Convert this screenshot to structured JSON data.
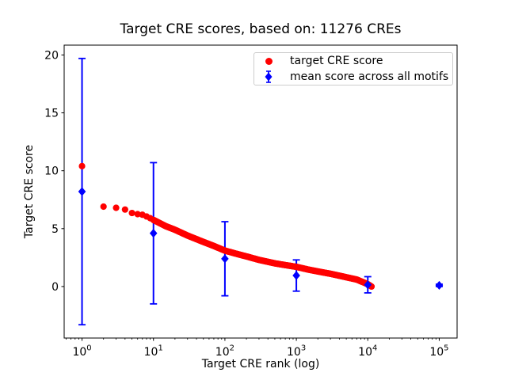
{
  "figure": {
    "background": "#ffffff"
  },
  "chart_data": {
    "type": "scatter",
    "title": "Target CRE scores, based on: 11276 CREs",
    "xlabel": "Target CRE rank (log)",
    "ylabel": "Target CRE score",
    "x_scale": "log",
    "xlim_log10": [
      -0.25,
      5.25
    ],
    "ylim": [
      -4.45,
      20.85
    ],
    "x_major_tick_exponents": [
      0,
      1,
      2,
      3,
      4,
      5
    ],
    "x_tick_base": "10",
    "y_ticks": [
      0,
      5,
      10,
      15,
      20
    ],
    "n_cres": 11276,
    "grid": false,
    "legend_position": "upper right",
    "series": [
      {
        "name": "target CRE score",
        "color": "#ff0000",
        "marker": "circle",
        "n_points": 11276,
        "note": "monotonically decreasing score vs rank; dense band sampled at anchor ranks below",
        "points": [
          [
            1,
            10.4
          ],
          [
            2,
            6.9
          ],
          [
            3,
            6.8
          ],
          [
            4,
            6.65
          ],
          [
            5,
            6.35
          ],
          [
            6,
            6.25
          ],
          [
            7,
            6.2
          ],
          [
            8,
            6.05
          ],
          [
            9,
            5.9
          ],
          [
            10,
            5.75
          ],
          [
            15,
            5.2
          ],
          [
            20,
            4.9
          ],
          [
            30,
            4.4
          ],
          [
            50,
            3.85
          ],
          [
            70,
            3.5
          ],
          [
            100,
            3.1
          ],
          [
            150,
            2.8
          ],
          [
            200,
            2.6
          ],
          [
            300,
            2.3
          ],
          [
            500,
            2.0
          ],
          [
            700,
            1.85
          ],
          [
            1000,
            1.7
          ],
          [
            1500,
            1.45
          ],
          [
            2000,
            1.3
          ],
          [
            3000,
            1.1
          ],
          [
            5000,
            0.8
          ],
          [
            7000,
            0.6
          ],
          [
            10000,
            0.2
          ],
          [
            11276,
            0.0
          ]
        ]
      },
      {
        "name": "mean score across all motifs",
        "color": "#0000ff",
        "marker": "diamond",
        "error_bars": true,
        "points": [
          {
            "rank": 1,
            "mean": 8.2,
            "std": 11.5
          },
          {
            "rank": 10,
            "mean": 4.6,
            "std": 6.1
          },
          {
            "rank": 100,
            "mean": 2.4,
            "std": 3.2
          },
          {
            "rank": 1000,
            "mean": 0.95,
            "std": 1.35
          },
          {
            "rank": 10000,
            "mean": 0.15,
            "std": 0.7
          },
          {
            "rank": 100000,
            "mean": 0.1,
            "std": 0.1
          }
        ]
      }
    ]
  },
  "layout_colors": {
    "axis": "#000000",
    "legend_border": "#cccccc"
  }
}
